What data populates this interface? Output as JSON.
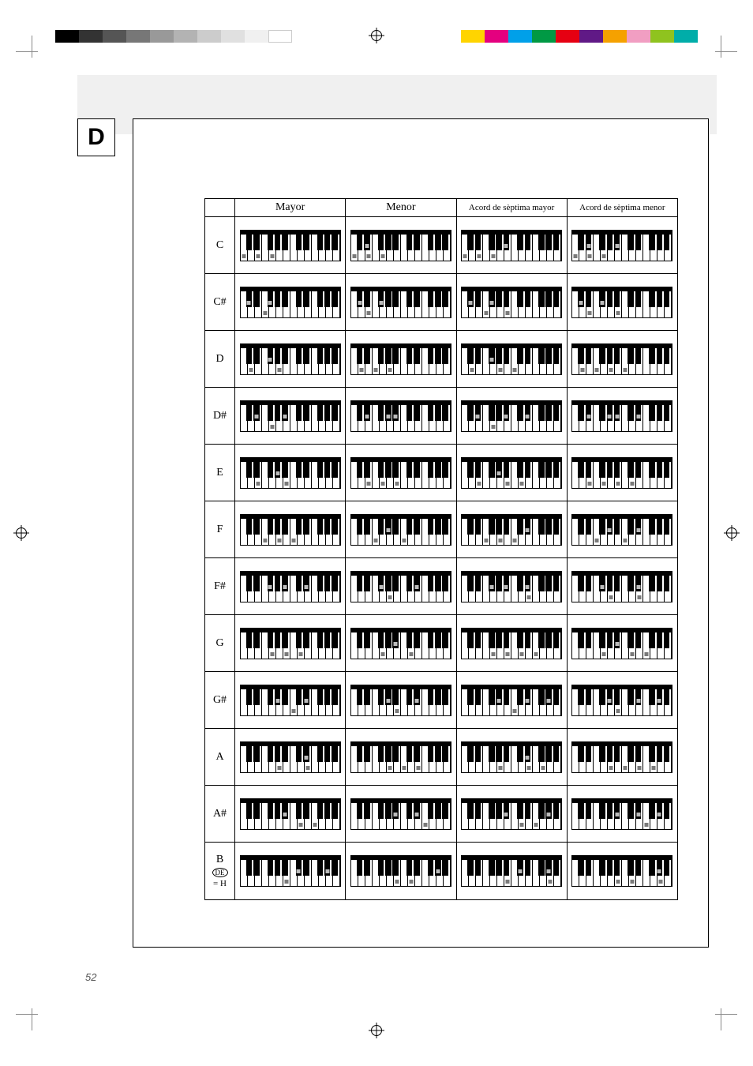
{
  "registration": {
    "left_swatches": [
      "#000000",
      "#333333",
      "#555555",
      "#777777",
      "#999999",
      "#B3B3B3",
      "#CCCCCC",
      "#E0E0E0",
      "#F0F0F0",
      "#FFFFFF"
    ],
    "right_swatches": [
      "#FFD400",
      "#E4007F",
      "#00A0E9",
      "#009944",
      "#E60012",
      "#601986",
      "#F5A100",
      "#F19EC2",
      "#8FC31F",
      "#00ADA9"
    ]
  },
  "section_letter": "D",
  "page_number": "52",
  "columns": [
    "Mayor",
    "Menor",
    "Acord de sèptima mayor",
    "Acord de sèptima menor"
  ],
  "keyboard": {
    "white_keys": 14,
    "black_positions_pct": [
      5.6,
      13.0,
      27.0,
      34.3,
      41.6,
      55.6,
      63.0,
      77.0,
      84.3,
      91.6
    ]
  },
  "rows": [
    {
      "label": "C",
      "de": false,
      "eq": null,
      "chords": [
        {
          "w": [
            0,
            2,
            4
          ],
          "b": []
        },
        {
          "w": [
            0,
            2,
            4
          ],
          "b": [
            1
          ]
        },
        {
          "w": [
            0,
            2,
            4
          ],
          "b": [
            4
          ]
        },
        {
          "w": [
            0,
            2,
            4
          ],
          "b": [
            1,
            4
          ]
        }
      ]
    },
    {
      "label": "C#",
      "de": false,
      "eq": null,
      "chords": [
        {
          "w": [
            3
          ],
          "b": [
            0,
            2
          ]
        },
        {
          "w": [
            2
          ],
          "b": [
            0,
            2
          ]
        },
        {
          "w": [
            3,
            6
          ],
          "b": [
            0,
            2
          ]
        },
        {
          "w": [
            2,
            6
          ],
          "b": [
            0,
            2
          ]
        }
      ]
    },
    {
      "label": "D",
      "de": false,
      "eq": null,
      "chords": [
        {
          "w": [
            1,
            5
          ],
          "b": [
            2
          ]
        },
        {
          "w": [
            1,
            3,
            5
          ],
          "b": []
        },
        {
          "w": [
            1,
            5,
            7
          ],
          "b": [
            2
          ]
        },
        {
          "w": [
            1,
            3,
            5,
            7
          ],
          "b": []
        }
      ]
    },
    {
      "label": "D#",
      "de": false,
      "eq": null,
      "chords": [
        {
          "w": [
            4
          ],
          "b": [
            1,
            4
          ]
        },
        {
          "w": [],
          "b": [
            1,
            3,
            4
          ]
        },
        {
          "w": [
            4
          ],
          "b": [
            1,
            4,
            6
          ]
        },
        {
          "w": [],
          "b": [
            1,
            3,
            4,
            6
          ]
        }
      ]
    },
    {
      "label": "E",
      "de": false,
      "eq": null,
      "chords": [
        {
          "w": [
            2,
            6
          ],
          "b": [
            3
          ]
        },
        {
          "w": [
            2,
            4,
            6
          ],
          "b": []
        },
        {
          "w": [
            2,
            6,
            8
          ],
          "b": [
            3
          ]
        },
        {
          "w": [
            2,
            4,
            6,
            8
          ],
          "b": []
        }
      ]
    },
    {
      "label": "F",
      "de": false,
      "eq": null,
      "chords": [
        {
          "w": [
            3,
            5,
            7
          ],
          "b": []
        },
        {
          "w": [
            3,
            7
          ],
          "b": [
            3
          ]
        },
        {
          "w": [
            3,
            5,
            7
          ],
          "b": [
            6
          ]
        },
        {
          "w": [
            3,
            7
          ],
          "b": [
            3,
            6
          ]
        }
      ]
    },
    {
      "label": "F#",
      "de": false,
      "eq": null,
      "chords": [
        {
          "w": [],
          "b": [
            2,
            4,
            6
          ]
        },
        {
          "w": [
            5
          ],
          "b": [
            2,
            6
          ]
        },
        {
          "w": [
            9
          ],
          "b": [
            2,
            4,
            6
          ]
        },
        {
          "w": [
            5,
            9
          ],
          "b": [
            2,
            6
          ]
        }
      ]
    },
    {
      "label": "G",
      "de": false,
      "eq": null,
      "chords": [
        {
          "w": [
            4,
            6,
            8
          ],
          "b": []
        },
        {
          "w": [
            4,
            8
          ],
          "b": [
            4
          ]
        },
        {
          "w": [
            4,
            6,
            8,
            10
          ],
          "b": []
        },
        {
          "w": [
            4,
            8,
            10
          ],
          "b": [
            4
          ]
        }
      ]
    },
    {
      "label": "G#",
      "de": false,
      "eq": null,
      "chords": [
        {
          "w": [
            7
          ],
          "b": [
            3,
            6
          ]
        },
        {
          "w": [
            6
          ],
          "b": [
            3,
            6
          ]
        },
        {
          "w": [
            7
          ],
          "b": [
            3,
            6,
            8
          ]
        },
        {
          "w": [
            6
          ],
          "b": [
            3,
            6,
            8
          ]
        }
      ]
    },
    {
      "label": "A",
      "de": false,
      "eq": null,
      "chords": [
        {
          "w": [
            5,
            9
          ],
          "b": [
            6
          ]
        },
        {
          "w": [
            5,
            7,
            9
          ],
          "b": []
        },
        {
          "w": [
            5,
            9,
            11
          ],
          "b": [
            6
          ]
        },
        {
          "w": [
            5,
            7,
            9,
            11
          ],
          "b": []
        }
      ]
    },
    {
      "label": "A#",
      "de": false,
      "eq": null,
      "chords": [
        {
          "w": [
            8,
            10
          ],
          "b": [
            4
          ]
        },
        {
          "w": [
            10
          ],
          "b": [
            4,
            6
          ]
        },
        {
          "w": [
            8,
            10
          ],
          "b": [
            4,
            8
          ]
        },
        {
          "w": [
            10
          ],
          "b": [
            4,
            6,
            8
          ]
        }
      ]
    },
    {
      "label": "B",
      "de": true,
      "eq": "= H",
      "chords": [
        {
          "w": [
            6
          ],
          "b": [
            5,
            8
          ]
        },
        {
          "w": [
            6,
            8
          ],
          "b": [
            8
          ]
        },
        {
          "w": [
            6,
            12
          ],
          "b": [
            5,
            8
          ]
        },
        {
          "w": [
            6,
            8,
            12
          ],
          "b": [
            8
          ]
        }
      ]
    }
  ]
}
